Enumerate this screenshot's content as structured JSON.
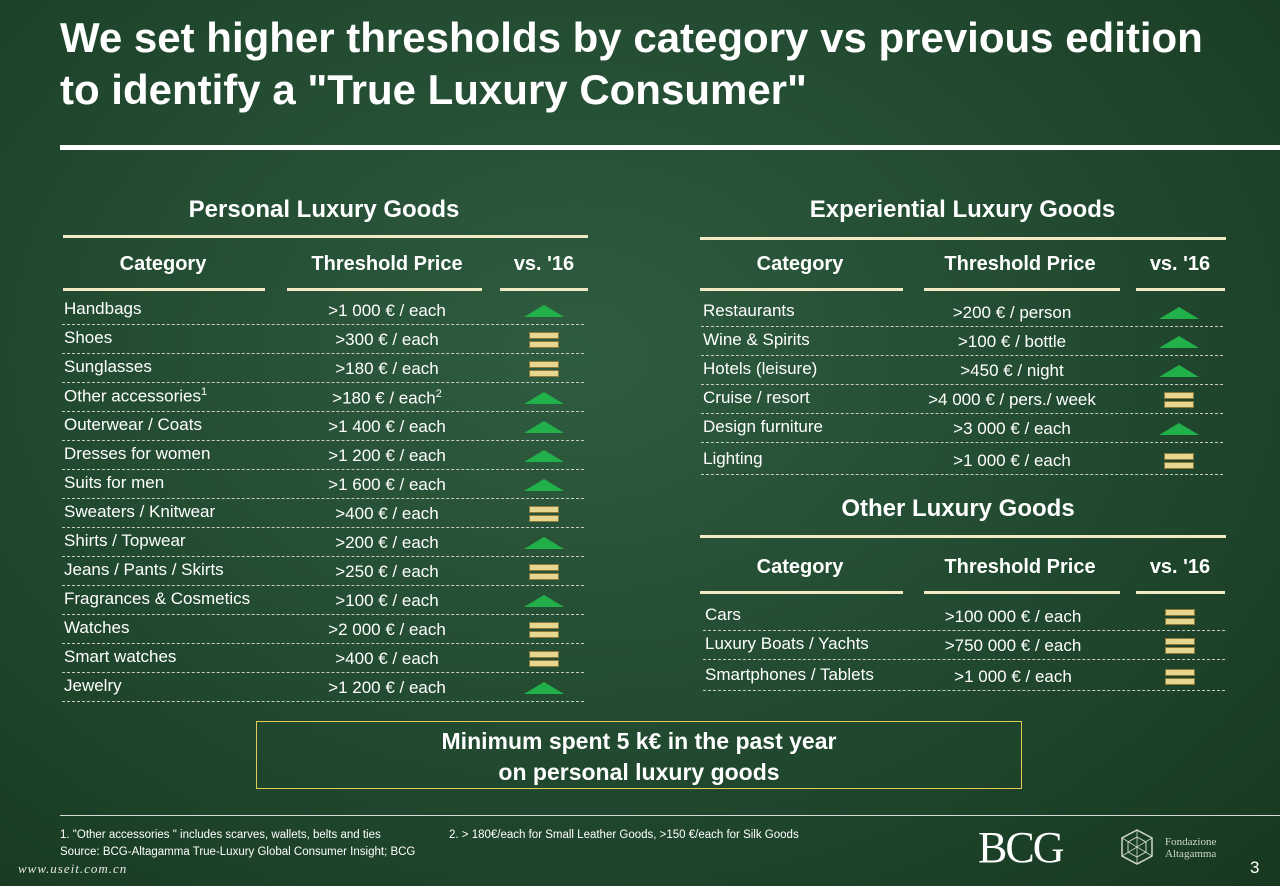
{
  "title": "We set higher thresholds by category vs previous edition to identify a \"True Luxury Consumer\"",
  "personal": {
    "section_title": "Personal Luxury Goods",
    "headers": {
      "category": "Category",
      "threshold": "Threshold Price",
      "vs": "vs. '16"
    },
    "rows": [
      {
        "category": "Handbags",
        "sup": "",
        "threshold": ">1 000 € / each",
        "threshold_sup": "",
        "trend": "up"
      },
      {
        "category": "Shoes",
        "sup": "",
        "threshold": ">300 € / each",
        "threshold_sup": "",
        "trend": "equal"
      },
      {
        "category": "Sunglasses",
        "sup": "",
        "threshold": ">180 € / each",
        "threshold_sup": "",
        "trend": "equal"
      },
      {
        "category": "Other accessories",
        "sup": "1",
        "threshold": ">180 € / each",
        "threshold_sup": "2",
        "trend": "up"
      },
      {
        "category": "Outerwear / Coats",
        "sup": "",
        "threshold": ">1 400 € / each",
        "threshold_sup": "",
        "trend": "up"
      },
      {
        "category": "Dresses for women",
        "sup": "",
        "threshold": ">1 200 € / each",
        "threshold_sup": "",
        "trend": "up"
      },
      {
        "category": "Suits for men",
        "sup": "",
        "threshold": ">1 600 € / each",
        "threshold_sup": "",
        "trend": "up"
      },
      {
        "category": "Sweaters / Knitwear",
        "sup": "",
        "threshold": ">400 € / each",
        "threshold_sup": "",
        "trend": "equal"
      },
      {
        "category": "Shirts / Topwear",
        "sup": "",
        "threshold": ">200 € / each",
        "threshold_sup": "",
        "trend": "up"
      },
      {
        "category": "Jeans / Pants / Skirts",
        "sup": "",
        "threshold": ">250 € / each",
        "threshold_sup": "",
        "trend": "equal"
      },
      {
        "category": "Fragrances & Cosmetics",
        "sup": "",
        "threshold": ">100 € / each",
        "threshold_sup": "",
        "trend": "up"
      },
      {
        "category": "Watches",
        "sup": "",
        "threshold": ">2 000 € / each",
        "threshold_sup": "",
        "trend": "equal"
      },
      {
        "category": "Smart watches",
        "sup": "",
        "threshold": ">400 € / each",
        "threshold_sup": "",
        "trend": "equal"
      },
      {
        "category": "Jewelry",
        "sup": "",
        "threshold": ">1 200 € / each",
        "threshold_sup": "",
        "trend": "up"
      }
    ]
  },
  "experiential": {
    "section_title": "Experiential Luxury Goods",
    "headers": {
      "category": "Category",
      "threshold": "Threshold Price",
      "vs": "vs. '16"
    },
    "rows": [
      {
        "category": "Restaurants",
        "threshold": ">200 € / person",
        "trend": "up"
      },
      {
        "category": "Wine & Spirits",
        "threshold": ">100 € / bottle",
        "trend": "up"
      },
      {
        "category": "Hotels (leisure)",
        "threshold": ">450 € / night",
        "trend": "up"
      },
      {
        "category": "Cruise / resort",
        "threshold": ">4 000 € / pers./ week",
        "trend": "equal"
      },
      {
        "category": "Design furniture",
        "threshold": ">3 000 € / each",
        "trend": "up"
      },
      {
        "category": "Lighting",
        "threshold": ">1 000 € / each",
        "trend": "equal"
      }
    ]
  },
  "other": {
    "section_title": "Other Luxury Goods",
    "headers": {
      "category": "Category",
      "threshold": "Threshold Price",
      "vs": "vs. '16"
    },
    "rows": [
      {
        "category": "Cars",
        "threshold": ">100 000 € / each",
        "trend": "equal"
      },
      {
        "category": "Luxury Boats / Yachts",
        "threshold": ">750 000 € / each",
        "trend": "equal"
      },
      {
        "category": "Smartphones / Tablets",
        "threshold": ">1 000 € / each",
        "trend": "equal"
      }
    ]
  },
  "callout": {
    "line1": "Minimum spent 5 k€ in the past year",
    "line2": "on personal luxury goods"
  },
  "footnotes": {
    "note1": "1. \"Other accessories \" includes scarves, wallets, belts and ties",
    "note2": "2. > 180€/each for Small Leather Goods,  >150 €/each for Silk Goods",
    "source": "Source: BCG-Altagamma True-Luxury Global Consumer Insight; BCG"
  },
  "logos": {
    "bcg": "BCG",
    "altagamma_line1": "Fondazione",
    "altagamma_line2": "Altagamma"
  },
  "page_number": "3",
  "watermark": "www.useit.com.cn",
  "colors": {
    "up_arrow": "#22b04a",
    "equal_bar": "#e6d690",
    "rule": "#f2eac4"
  }
}
